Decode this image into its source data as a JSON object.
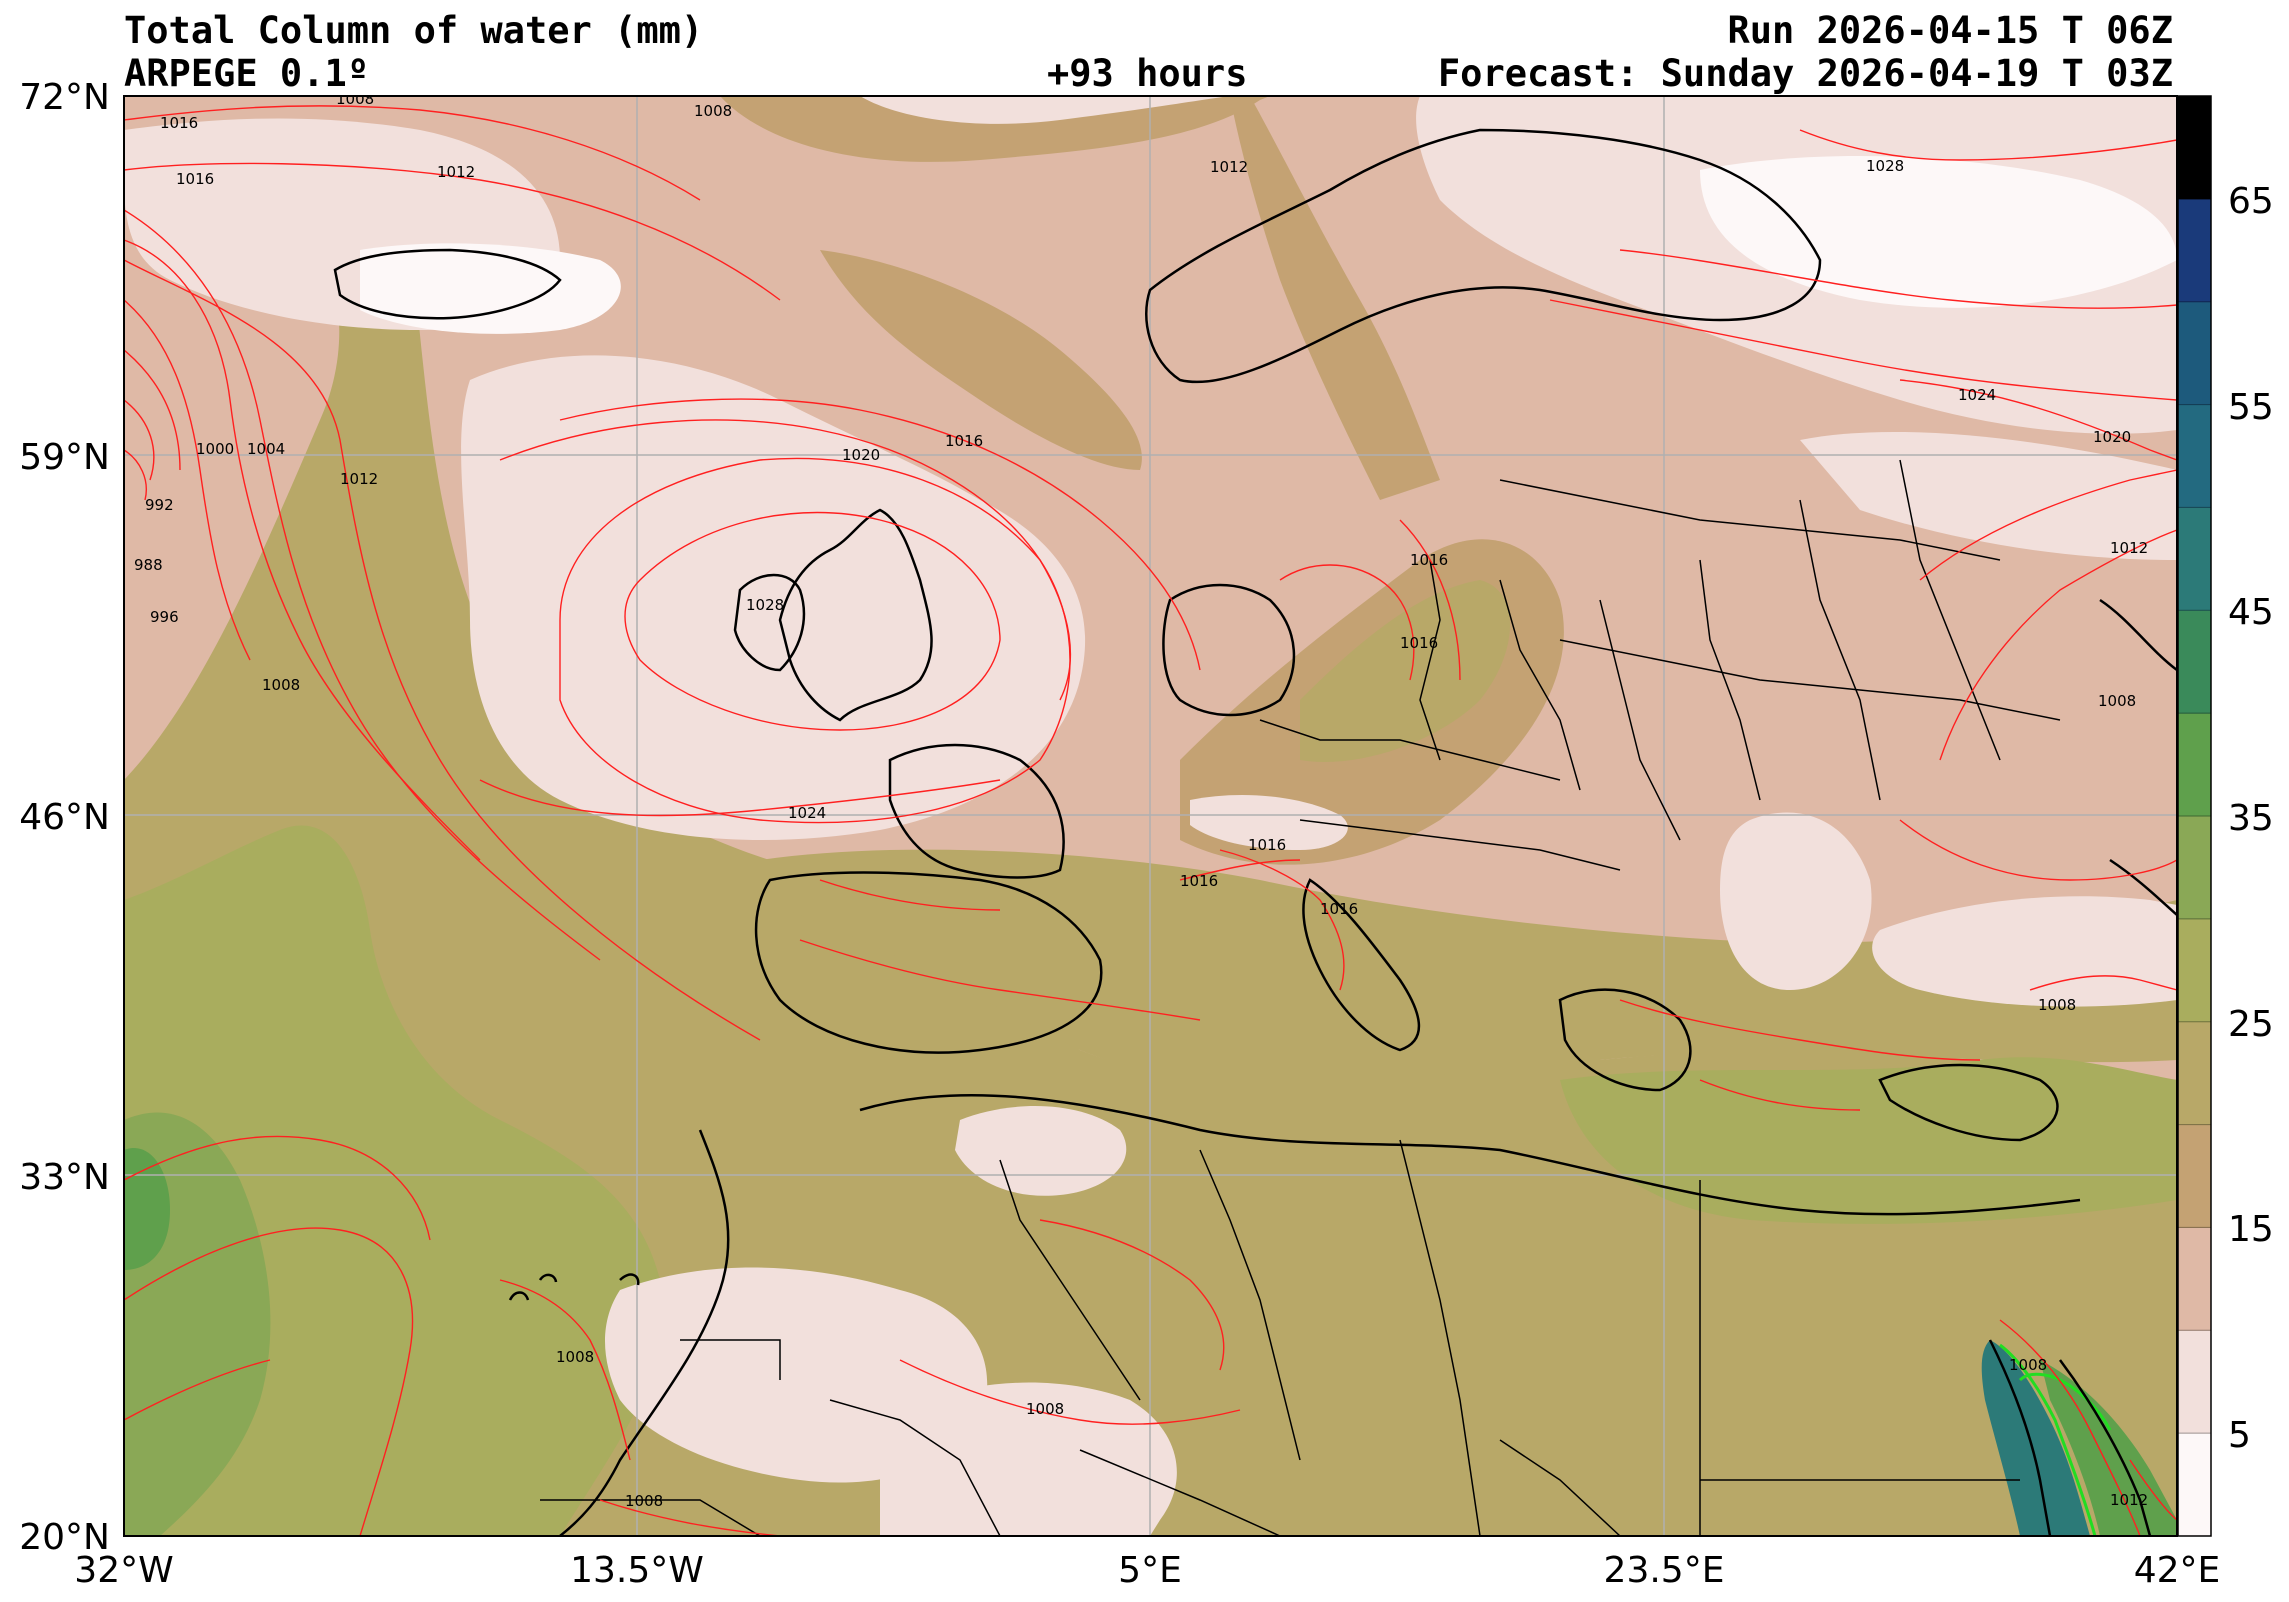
{
  "header": {
    "title": "Total Column of water (mm)",
    "model": "ARPEGE 0.1º",
    "lead_time": "+93 hours",
    "run": "Run 2026-04-15 T 06Z",
    "forecast": "Forecast: Sunday 2026-04-19 T 03Z"
  },
  "axes": {
    "lat_ticks": [
      "72°N",
      "59°N",
      "46°N",
      "33°N",
      "20°N"
    ],
    "lon_ticks": [
      "32°W",
      "13.5°W",
      "5°E",
      "23.5°E",
      "42°E"
    ],
    "lat_range": [
      20,
      72
    ],
    "lon_range": [
      -32,
      42
    ]
  },
  "colorbar": {
    "tick_labels": [
      "5",
      "15",
      "25",
      "35",
      "45",
      "55",
      "65"
    ],
    "levels": [
      0,
      5,
      10,
      15,
      20,
      25,
      30,
      35,
      40,
      45,
      50,
      55,
      60,
      65,
      70
    ],
    "colors": [
      "#fdf8f8",
      "#f2e0dc",
      "#dfb9a6",
      "#c4a273",
      "#b8a868",
      "#a9ad5e",
      "#8aa856",
      "#5fa04c",
      "#3a8a5a",
      "#2c7a78",
      "#236a80",
      "#1d5a7c",
      "#1a3a7a",
      "#000000"
    ]
  },
  "isobar_labels": [
    "1008",
    "1008",
    "1016",
    "1016",
    "1012",
    "1020",
    "1016",
    "1028",
    "1000",
    "1004",
    "992",
    "988",
    "996",
    "1012",
    "1008",
    "1024",
    "1016",
    "1016",
    "1016",
    "1016",
    "1012",
    "1016",
    "1008",
    "1008",
    "1008",
    "1008",
    "1028",
    "1024",
    "1020",
    "1012",
    "1008",
    "1008",
    "1012"
  ],
  "colors": {
    "isobar": "#ff2020",
    "coast": "#000000",
    "grid": "#b0b0b0",
    "anomaly": "#22dd22"
  }
}
